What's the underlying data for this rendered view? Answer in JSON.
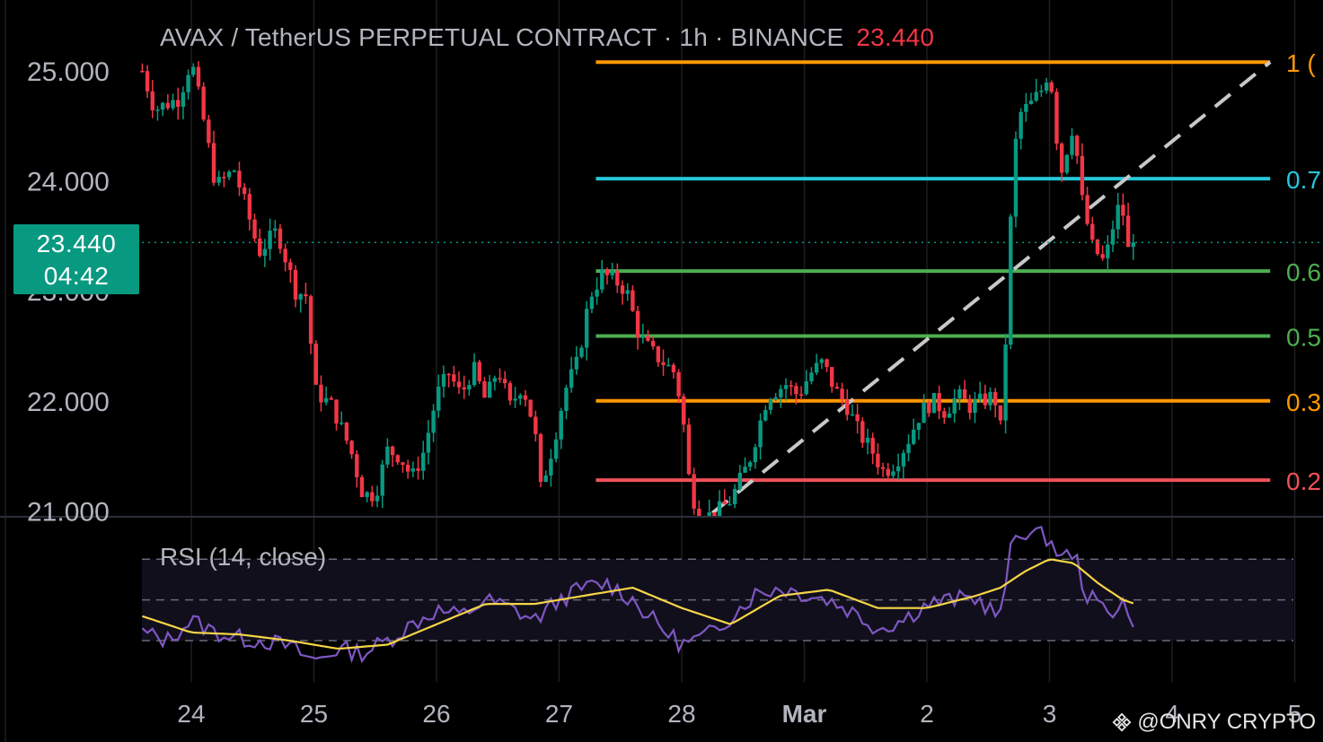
{
  "header": {
    "title": "AVAX / TetherUS PERPETUAL CONTRACT · 1h · BINANCE",
    "last_price": "23.440"
  },
  "price_tag": {
    "price": "23.440",
    "countdown": "04:42"
  },
  "rsi": {
    "label": "RSI (14, close)",
    "upper": 70,
    "middle": 50,
    "lower": 30
  },
  "watermark": {
    "text": "@ONRY CRYPTO"
  },
  "colors": {
    "up": "#089981",
    "down": "#f23645",
    "rsi": "#7e57c2",
    "rsi_ma": "#f5d547",
    "fib_orange": "#ff9800",
    "fib_blue": "#26c6da",
    "fib_green": "#4caf50",
    "fib_red": "#f0505a"
  },
  "chart_data": {
    "type": "candlestick",
    "symbol": "AVAX / TetherUS PERPETUAL CONTRACT",
    "interval": "1h",
    "exchange": "BINANCE",
    "ylim": [
      20.95,
      25.45
    ],
    "y_ticks": [
      "25.000",
      "24.000",
      "23.000",
      "22.000",
      "21.000"
    ],
    "x_ticks": [
      "24",
      "25",
      "26",
      "27",
      "28",
      "Mar",
      "2",
      "3",
      "4",
      "5"
    ],
    "x_ticks_days": [
      0,
      1,
      2,
      3,
      4,
      5,
      6,
      7,
      8,
      9
    ],
    "fib_levels": [
      {
        "label": "1 (",
        "price": 25.08,
        "color": "#ff9800"
      },
      {
        "label": "0.7",
        "price": 24.02,
        "color": "#26c6da"
      },
      {
        "label": "0.6",
        "price": 23.18,
        "color": "#4caf50"
      },
      {
        "label": "0.5",
        "price": 22.59,
        "color": "#4caf50"
      },
      {
        "label": "0.3",
        "price": 22.0,
        "color": "#ff9800"
      },
      {
        "label": "0.2",
        "price": 21.28,
        "color": "#f0505a"
      }
    ],
    "fib_x_range_days": [
      3.3,
      8.8
    ],
    "trend_line": {
      "from": {
        "day": 4.25,
        "price": 20.98
      },
      "to": {
        "day": 8.8,
        "price": 25.08
      }
    },
    "last_price": 23.44,
    "anchors": [
      [
        -0.4,
        25.0
      ],
      [
        -0.3,
        24.65
      ],
      [
        -0.1,
        24.75
      ],
      [
        0.0,
        25.1
      ],
      [
        0.1,
        24.55
      ],
      [
        0.2,
        23.95
      ],
      [
        0.35,
        24.1
      ],
      [
        0.45,
        23.75
      ],
      [
        0.55,
        23.35
      ],
      [
        0.7,
        23.55
      ],
      [
        0.85,
        23.0
      ],
      [
        0.95,
        22.95
      ],
      [
        1.0,
        22.1
      ],
      [
        1.15,
        21.95
      ],
      [
        1.3,
        21.55
      ],
      [
        1.4,
        21.15
      ],
      [
        1.5,
        21.15
      ],
      [
        1.6,
        21.55
      ],
      [
        1.7,
        21.5
      ],
      [
        1.8,
        21.3
      ],
      [
        1.9,
        21.55
      ],
      [
        2.0,
        22.05
      ],
      [
        2.1,
        22.25
      ],
      [
        2.2,
        22.05
      ],
      [
        2.3,
        22.3
      ],
      [
        2.4,
        22.0
      ],
      [
        2.5,
        22.3
      ],
      [
        2.6,
        21.95
      ],
      [
        2.7,
        22.15
      ],
      [
        2.8,
        21.75
      ],
      [
        2.85,
        21.2
      ],
      [
        2.95,
        21.6
      ],
      [
        3.05,
        22.1
      ],
      [
        3.15,
        22.35
      ],
      [
        3.25,
        22.95
      ],
      [
        3.35,
        23.15
      ],
      [
        3.45,
        23.1
      ],
      [
        3.55,
        23.0
      ],
      [
        3.65,
        22.6
      ],
      [
        3.75,
        22.45
      ],
      [
        3.85,
        22.35
      ],
      [
        3.95,
        22.25
      ],
      [
        4.02,
        21.75
      ],
      [
        4.05,
        21.35
      ],
      [
        4.12,
        21.0
      ],
      [
        4.25,
        20.95
      ],
      [
        4.4,
        21.1
      ],
      [
        4.55,
        21.45
      ],
      [
        4.7,
        22.05
      ],
      [
        4.85,
        22.15
      ],
      [
        4.95,
        22.05
      ],
      [
        5.05,
        22.25
      ],
      [
        5.15,
        22.35
      ],
      [
        5.25,
        22.1
      ],
      [
        5.35,
        21.95
      ],
      [
        5.45,
        21.7
      ],
      [
        5.55,
        21.55
      ],
      [
        5.65,
        21.35
      ],
      [
        5.75,
        21.45
      ],
      [
        5.85,
        21.65
      ],
      [
        5.95,
        21.9
      ],
      [
        6.05,
        22.0
      ],
      [
        6.15,
        21.9
      ],
      [
        6.25,
        22.05
      ],
      [
        6.35,
        21.95
      ],
      [
        6.45,
        22.0
      ],
      [
        6.55,
        22.05
      ],
      [
        6.6,
        21.75
      ],
      [
        6.65,
        22.7
      ],
      [
        6.7,
        24.1
      ],
      [
        6.75,
        24.6
      ],
      [
        6.85,
        24.7
      ],
      [
        6.95,
        24.85
      ],
      [
        7.0,
        25.05
      ],
      [
        7.05,
        24.45
      ],
      [
        7.1,
        24.1
      ],
      [
        7.2,
        24.55
      ],
      [
        7.25,
        23.9
      ],
      [
        7.35,
        23.4
      ],
      [
        7.45,
        23.25
      ],
      [
        7.55,
        23.75
      ],
      [
        7.6,
        23.7
      ],
      [
        7.65,
        23.3
      ],
      [
        7.7,
        23.44
      ]
    ],
    "rsi_ylim": [
      16,
      95
    ],
    "rsi_anchors": [
      [
        -0.4,
        34
      ],
      [
        -0.2,
        30
      ],
      [
        0.0,
        40
      ],
      [
        0.2,
        34
      ],
      [
        0.4,
        31
      ],
      [
        0.6,
        30
      ],
      [
        0.8,
        27
      ],
      [
        1.0,
        20
      ],
      [
        1.2,
        26
      ],
      [
        1.4,
        24
      ],
      [
        1.6,
        30
      ],
      [
        1.8,
        38
      ],
      [
        2.0,
        45
      ],
      [
        2.2,
        42
      ],
      [
        2.4,
        50
      ],
      [
        2.6,
        46
      ],
      [
        2.8,
        40
      ],
      [
        3.0,
        50
      ],
      [
        3.2,
        56
      ],
      [
        3.4,
        58
      ],
      [
        3.6,
        50
      ],
      [
        3.8,
        38
      ],
      [
        4.0,
        28
      ],
      [
        4.2,
        32
      ],
      [
        4.4,
        42
      ],
      [
        4.6,
        53
      ],
      [
        4.8,
        56
      ],
      [
        5.0,
        53
      ],
      [
        5.2,
        50
      ],
      [
        5.4,
        44
      ],
      [
        5.6,
        36
      ],
      [
        5.8,
        40
      ],
      [
        6.0,
        48
      ],
      [
        6.2,
        50
      ],
      [
        6.4,
        51
      ],
      [
        6.55,
        44
      ],
      [
        6.6,
        42
      ],
      [
        6.7,
        80
      ],
      [
        6.8,
        84
      ],
      [
        7.0,
        80
      ],
      [
        7.1,
        70
      ],
      [
        7.2,
        74
      ],
      [
        7.3,
        52
      ],
      [
        7.4,
        48
      ],
      [
        7.5,
        44
      ],
      [
        7.6,
        50
      ],
      [
        7.65,
        38
      ],
      [
        7.7,
        42
      ]
    ],
    "rsi_ma_anchors": [
      [
        -0.4,
        42
      ],
      [
        0.0,
        34
      ],
      [
        0.4,
        33
      ],
      [
        0.8,
        30
      ],
      [
        1.2,
        26
      ],
      [
        1.6,
        28
      ],
      [
        2.0,
        38
      ],
      [
        2.4,
        48
      ],
      [
        2.8,
        48
      ],
      [
        3.2,
        52
      ],
      [
        3.6,
        56
      ],
      [
        4.0,
        46
      ],
      [
        4.4,
        38
      ],
      [
        4.8,
        52
      ],
      [
        5.2,
        55
      ],
      [
        5.6,
        46
      ],
      [
        6.0,
        46
      ],
      [
        6.4,
        52
      ],
      [
        6.6,
        56
      ],
      [
        6.8,
        64
      ],
      [
        7.0,
        70
      ],
      [
        7.2,
        68
      ],
      [
        7.4,
        58
      ],
      [
        7.6,
        50
      ],
      [
        7.7,
        48
      ]
    ]
  }
}
